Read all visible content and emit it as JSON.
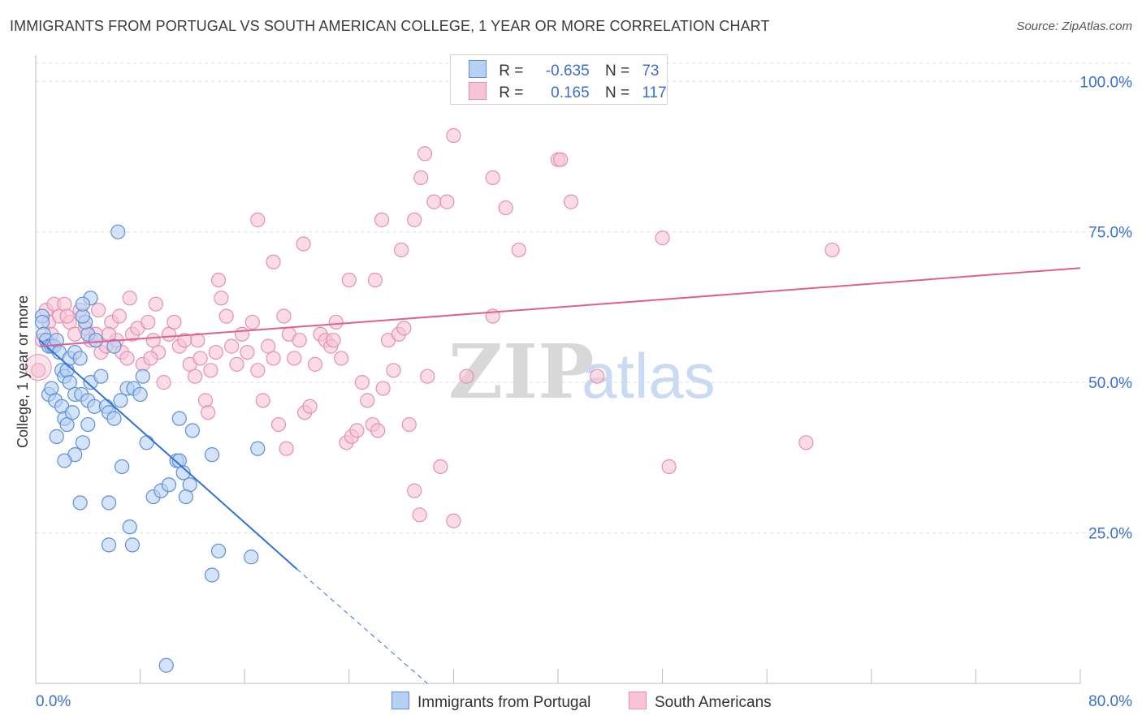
{
  "header": {
    "title": "IMMIGRANTS FROM PORTUGAL VS SOUTH AMERICAN COLLEGE, 1 YEAR OR MORE CORRELATION CHART",
    "source": "Source: ZipAtlas.com"
  },
  "watermark": {
    "zip": "ZIP",
    "atlas": "atlas"
  },
  "colors": {
    "blue": "#5b8fd9",
    "blue_fill": "#b8d0f3",
    "blue_line": "#2f72d6",
    "pink": "#e590ae",
    "pink_fill": "#f7c3d5",
    "pink_line": "#e0608d",
    "axis_text": "#3a6fd0",
    "grid": "#dddddd"
  },
  "legend": {
    "rows": [
      {
        "r_label": "R =",
        "r_value": "-0.635",
        "n_label": "N =",
        "n_value": "73"
      },
      {
        "r_label": "R =",
        "r_value": "0.165",
        "n_label": "N =",
        "n_value": "117"
      }
    ]
  },
  "bottom_legend": {
    "series1": "Immigrants from Portugal",
    "series2": "South Americans"
  },
  "chart_data": {
    "type": "scatter",
    "title": "IMMIGRANTS FROM PORTUGAL VS SOUTH AMERICAN COLLEGE, 1 YEAR OR MORE CORRELATION CHART",
    "xlabel": "",
    "ylabel": "College, 1 year or more",
    "xlim": [
      0,
      80
    ],
    "ylim": [
      0,
      103
    ],
    "x_tick_labels": [
      "0.0%",
      "80.0%"
    ],
    "y_tick_labels": [
      "25.0%",
      "50.0%",
      "75.0%",
      "100.0%"
    ],
    "y_ticks": [
      25,
      50,
      75,
      100
    ],
    "series": [
      {
        "name": "Immigrants from Portugal",
        "color": "#5b8fd9",
        "trend": {
          "x": [
            0.3,
            20
          ],
          "y": [
            57,
            19
          ],
          "dashed_to": [
            30,
            0
          ]
        },
        "points": [
          [
            0.5,
            61
          ],
          [
            0.5,
            60
          ],
          [
            0.6,
            58
          ],
          [
            0.8,
            57
          ],
          [
            1.0,
            56
          ],
          [
            1.2,
            56
          ],
          [
            1.4,
            56
          ],
          [
            1.6,
            57
          ],
          [
            1.8,
            55
          ],
          [
            2.0,
            52
          ],
          [
            2.2,
            51
          ],
          [
            2.4,
            52
          ],
          [
            2.6,
            50
          ],
          [
            1.0,
            48
          ],
          [
            1.2,
            49
          ],
          [
            1.5,
            47
          ],
          [
            2.0,
            46
          ],
          [
            2.2,
            44
          ],
          [
            2.4,
            43
          ],
          [
            1.6,
            41
          ],
          [
            2.8,
            45
          ],
          [
            3.0,
            48
          ],
          [
            3.5,
            48
          ],
          [
            4.0,
            47
          ],
          [
            4.5,
            46
          ],
          [
            3.0,
            38
          ],
          [
            2.2,
            37
          ],
          [
            3.6,
            40
          ],
          [
            4.0,
            43
          ],
          [
            4.2,
            50
          ],
          [
            5.0,
            51
          ],
          [
            5.4,
            46
          ],
          [
            5.6,
            45
          ],
          [
            6.0,
            44
          ],
          [
            6.5,
            47
          ],
          [
            7.0,
            49
          ],
          [
            7.5,
            49
          ],
          [
            8.0,
            48
          ],
          [
            8.2,
            51
          ],
          [
            8.5,
            40
          ],
          [
            6.6,
            36
          ],
          [
            9.0,
            31
          ],
          [
            9.6,
            32
          ],
          [
            10.2,
            33
          ],
          [
            10.8,
            37
          ],
          [
            11.0,
            37
          ],
          [
            11.3,
            35
          ],
          [
            11.8,
            33
          ],
          [
            11.5,
            31
          ],
          [
            12.0,
            42
          ],
          [
            13.5,
            38
          ],
          [
            14.0,
            22
          ],
          [
            13.5,
            18
          ],
          [
            16.5,
            21
          ],
          [
            17.0,
            39
          ],
          [
            7.2,
            26
          ],
          [
            7.4,
            23
          ],
          [
            5.6,
            23
          ],
          [
            3.4,
            30
          ],
          [
            5.6,
            30
          ],
          [
            2.6,
            54
          ],
          [
            3.0,
            55
          ],
          [
            3.4,
            54
          ],
          [
            4.0,
            58
          ],
          [
            4.6,
            57
          ],
          [
            3.8,
            60
          ],
          [
            3.6,
            61
          ],
          [
            4.2,
            64
          ],
          [
            6.0,
            56
          ],
          [
            11.0,
            44
          ],
          [
            6.3,
            75
          ],
          [
            3.6,
            63
          ],
          [
            10,
            3
          ]
        ]
      },
      {
        "name": "South Americans",
        "color": "#e590ae",
        "trend": {
          "x": [
            0.3,
            80
          ],
          "y": [
            56,
            69
          ]
        },
        "points": [
          [
            0.2,
            52
          ],
          [
            0.5,
            57
          ],
          [
            0.8,
            62
          ],
          [
            1.0,
            60
          ],
          [
            1.4,
            63
          ],
          [
            1.8,
            61
          ],
          [
            2.2,
            63
          ],
          [
            2.6,
            60
          ],
          [
            3.0,
            58
          ],
          [
            3.4,
            62
          ],
          [
            3.8,
            59
          ],
          [
            4.2,
            57
          ],
          [
            4.6,
            58
          ],
          [
            5.0,
            55
          ],
          [
            5.4,
            56
          ],
          [
            5.8,
            60
          ],
          [
            6.2,
            57
          ],
          [
            6.6,
            55
          ],
          [
            7.0,
            54
          ],
          [
            7.4,
            58
          ],
          [
            7.8,
            59
          ],
          [
            8.2,
            53
          ],
          [
            8.6,
            60
          ],
          [
            9.0,
            57
          ],
          [
            9.4,
            55
          ],
          [
            9.8,
            50
          ],
          [
            10.2,
            58
          ],
          [
            10.6,
            60
          ],
          [
            11.0,
            56
          ],
          [
            11.4,
            57
          ],
          [
            11.8,
            53
          ],
          [
            12.2,
            51
          ],
          [
            12.6,
            54
          ],
          [
            13.0,
            47
          ],
          [
            13.4,
            52
          ],
          [
            13.8,
            55
          ],
          [
            14.2,
            64
          ],
          [
            14.6,
            61
          ],
          [
            15.0,
            56
          ],
          [
            15.4,
            53
          ],
          [
            15.8,
            58
          ],
          [
            16.2,
            55
          ],
          [
            16.6,
            60
          ],
          [
            17.0,
            52
          ],
          [
            17.4,
            47
          ],
          [
            17.8,
            56
          ],
          [
            18.2,
            54
          ],
          [
            18.6,
            43
          ],
          [
            19.0,
            61
          ],
          [
            19.4,
            58
          ],
          [
            19.8,
            54
          ],
          [
            20.2,
            57
          ],
          [
            20.6,
            45
          ],
          [
            21.0,
            46
          ],
          [
            21.4,
            53
          ],
          [
            21.8,
            58
          ],
          [
            22.2,
            57
          ],
          [
            22.6,
            56
          ],
          [
            23.0,
            60
          ],
          [
            23.4,
            54
          ],
          [
            23.8,
            40
          ],
          [
            24.2,
            41
          ],
          [
            24.6,
            42
          ],
          [
            25.0,
            50
          ],
          [
            25.4,
            47
          ],
          [
            25.8,
            43
          ],
          [
            26.2,
            42
          ],
          [
            26.6,
            49
          ],
          [
            27.0,
            57
          ],
          [
            27.4,
            52
          ],
          [
            27.8,
            58
          ],
          [
            28.2,
            59
          ],
          [
            28.6,
            43
          ],
          [
            29.0,
            32
          ],
          [
            29.4,
            28
          ],
          [
            30.0,
            51
          ],
          [
            31.0,
            36
          ],
          [
            32.0,
            27
          ],
          [
            33.0,
            51
          ],
          [
            35.0,
            61
          ],
          [
            14.0,
            67
          ],
          [
            17.0,
            77
          ],
          [
            18.2,
            70
          ],
          [
            20.5,
            73
          ],
          [
            24.0,
            67
          ],
          [
            26.0,
            67
          ],
          [
            26.5,
            77
          ],
          [
            28.0,
            72
          ],
          [
            29.0,
            77
          ],
          [
            29.5,
            84
          ],
          [
            29.8,
            88
          ],
          [
            30.5,
            80
          ],
          [
            31.5,
            80
          ],
          [
            32.0,
            91
          ],
          [
            35.0,
            84
          ],
          [
            36.0,
            79
          ],
          [
            37.0,
            72
          ],
          [
            40.0,
            87
          ],
          [
            40.2,
            87
          ],
          [
            41.0,
            80
          ],
          [
            43.0,
            51
          ],
          [
            48.0,
            74
          ],
          [
            48.5,
            36
          ],
          [
            59.0,
            40
          ],
          [
            61.0,
            72
          ],
          [
            1.2,
            58
          ],
          [
            2.4,
            61
          ],
          [
            4.8,
            62
          ],
          [
            5.6,
            58
          ],
          [
            7.2,
            64
          ],
          [
            9.2,
            63
          ],
          [
            6.4,
            61
          ],
          [
            8.8,
            54
          ],
          [
            12.4,
            57
          ],
          [
            13.2,
            45
          ],
          [
            19.2,
            39
          ],
          [
            22.8,
            57
          ]
        ]
      }
    ]
  }
}
